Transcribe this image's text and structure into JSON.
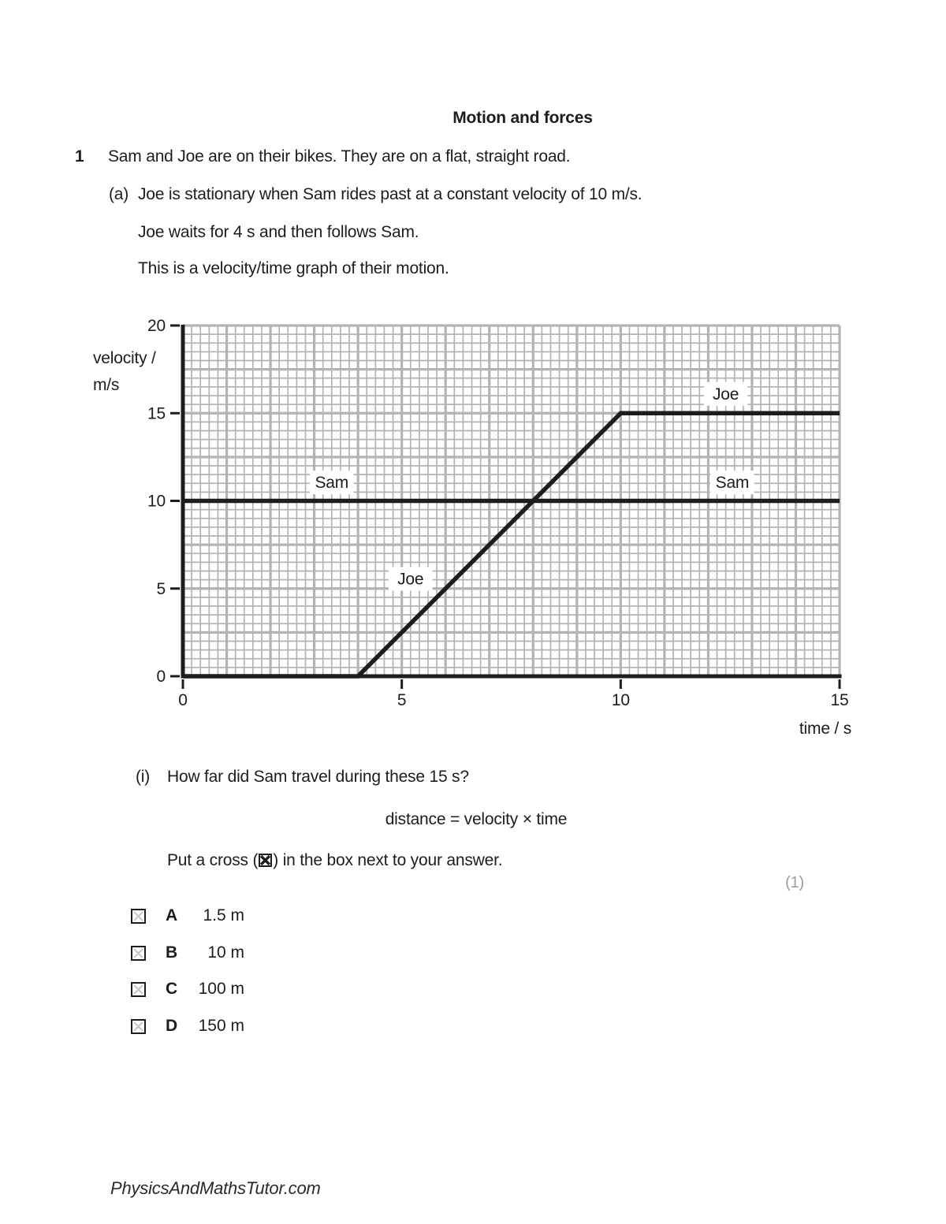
{
  "page": {
    "title": "Motion and forces",
    "question_number": "1",
    "question_intro": "Sam and Joe are on their bikes. They are on a flat, straight road.",
    "part_a_label": "(a)",
    "part_a_text": "Joe is stationary when Sam rides past at a constant velocity of 10 m/s.",
    "part_a_line2": "Joe waits for 4 s and then follows Sam.",
    "part_a_line3": "This is a velocity/time graph of their motion.",
    "part_i_label": "(i)",
    "part_i_text": "How far did Sam travel during these 15 s?",
    "equation": "distance = velocity × time",
    "cross_instruction_prefix": "Put a cross (",
    "cross_instruction_suffix": ") in the box next to your answer.",
    "marks": "(1)",
    "footer": "PhysicsAndMathsTutor.com"
  },
  "options": [
    {
      "letter": "A",
      "value": "1.5 m"
    },
    {
      "letter": "B",
      "value": "10 m"
    },
    {
      "letter": "C",
      "value": "100 m"
    },
    {
      "letter": "D",
      "value": "150 m"
    }
  ],
  "chart_data": {
    "type": "line",
    "xlabel": "time / s",
    "ylabel_line1": "velocity /",
    "ylabel_line2": "m/s",
    "xlim": [
      0,
      15
    ],
    "ylim": [
      0,
      20
    ],
    "xticks": [
      0,
      5,
      10,
      15
    ],
    "yticks": [
      0,
      5,
      10,
      15,
      20
    ],
    "minor_grid_step": {
      "x": 0.2,
      "y": 0.5
    },
    "major_grid_step": {
      "x": 1,
      "y": 2.5
    },
    "grid": true,
    "legend_position": "inline-labels",
    "series": [
      {
        "name": "Sam",
        "points": [
          [
            0,
            10
          ],
          [
            15,
            10
          ]
        ]
      },
      {
        "name": "Joe",
        "points": [
          [
            0,
            0
          ],
          [
            4,
            0
          ],
          [
            10,
            15
          ],
          [
            15,
            15
          ]
        ]
      }
    ],
    "series_labels": [
      {
        "text": "Sam",
        "x": 3.4,
        "y": 11.05
      },
      {
        "text": "Joe",
        "x": 5.2,
        "y": 5.55
      },
      {
        "text": "Joe",
        "x": 12.4,
        "y": 16.1
      },
      {
        "text": "Sam",
        "x": 12.55,
        "y": 11.05
      }
    ],
    "colors": {
      "line": "#1d1d1b",
      "grid": "#b3b3b3",
      "label_bg": "#ffffff"
    }
  }
}
